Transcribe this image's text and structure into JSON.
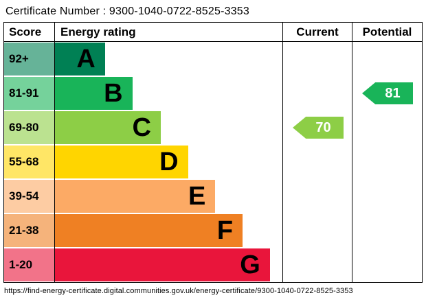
{
  "certificate_number_line": "Certificate Number : 9300-1040-0722-8525-3353",
  "header": {
    "score": "Score",
    "rating": "Energy rating",
    "current": "Current",
    "potential": "Potential"
  },
  "chart_data": {
    "type": "bar",
    "title": "Energy rating",
    "note": "UK EPC energy efficiency rating chart; horizontal band bars A-G with current and potential rating arrows",
    "bands": [
      {
        "score": "92+",
        "letter": "A",
        "color": "#008054",
        "score_color": "#66b398",
        "width_pct": 22
      },
      {
        "score": "81-91",
        "letter": "B",
        "color": "#19b459",
        "score_color": "#75d29b",
        "width_pct": 34
      },
      {
        "score": "69-80",
        "letter": "C",
        "color": "#8dce46",
        "score_color": "#bbe290",
        "width_pct": 46.5
      },
      {
        "score": "55-68",
        "letter": "D",
        "color": "#ffd500",
        "score_color": "#ffe666",
        "width_pct": 58.5
      },
      {
        "score": "39-54",
        "letter": "E",
        "color": "#fcaa65",
        "score_color": "#fdcca3",
        "width_pct": 70.5
      },
      {
        "score": "21-38",
        "letter": "F",
        "color": "#ef8023",
        "score_color": "#f5b37b",
        "width_pct": 82.5
      },
      {
        "score": "1-20",
        "letter": "G",
        "color": "#e9153b",
        "score_color": "#f27389",
        "width_pct": 94.5
      }
    ],
    "current": {
      "value": "70",
      "band": "C",
      "color": "#8dce46"
    },
    "potential": {
      "value": "81",
      "band": "B",
      "color": "#19b459"
    }
  },
  "footer_url": "https://find-energy-certificate.digital.communities.gov.uk/energy-certificate/9300-1040-0722-8525-3353"
}
